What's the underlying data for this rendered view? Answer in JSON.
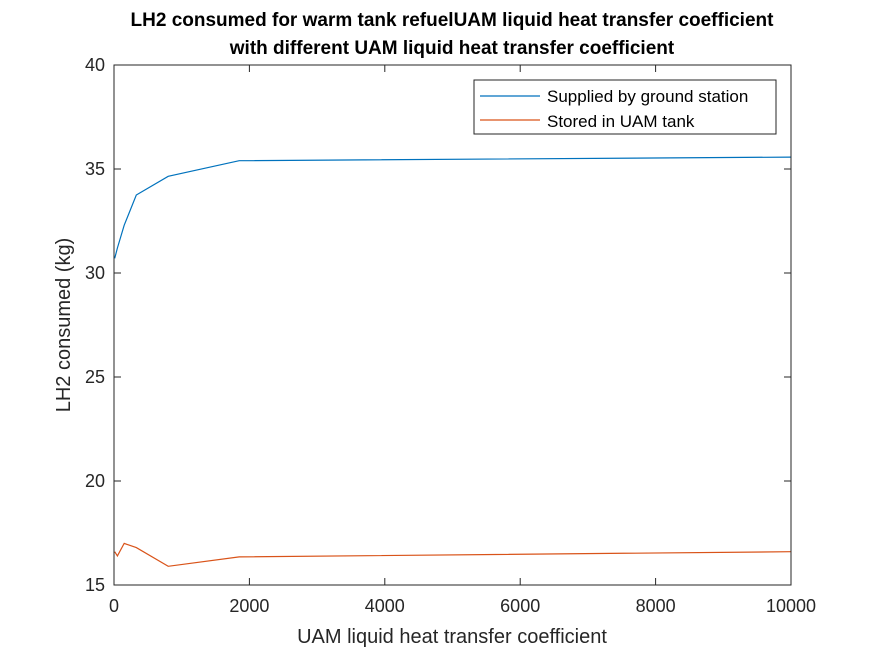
{
  "chart_data": {
    "type": "line",
    "title_line1": "LH2 consumed for warm tank refuelUAM liquid heat transfer coefficient",
    "title_line2": "with different UAM liquid heat transfer coefficient",
    "xlabel": "UAM liquid heat transfer coefficient",
    "ylabel": "LH2 consumed (kg)",
    "xlim": [
      0,
      10000
    ],
    "ylim": [
      15,
      40
    ],
    "xticks": [
      0,
      2000,
      4000,
      6000,
      8000,
      10000
    ],
    "xtick_labels": [
      "0",
      "2000",
      "4000",
      "6000",
      "8000",
      "10000"
    ],
    "yticks": [
      15,
      20,
      25,
      30,
      35,
      40
    ],
    "ytick_labels": [
      "15",
      "20",
      "25",
      "30",
      "35",
      "40"
    ],
    "grid": false,
    "legend_position": "top-right",
    "series": [
      {
        "name": "Supplied by ground station",
        "color": "#0072BD",
        "x": [
          10,
          50,
          150,
          330,
          800,
          1850,
          10000
        ],
        "y": [
          30.7,
          31.2,
          32.3,
          33.75,
          34.65,
          35.4,
          35.57
        ]
      },
      {
        "name": "Stored in UAM tank",
        "color": "#D95319",
        "x": [
          10,
          50,
          150,
          330,
          800,
          1850,
          10000
        ],
        "y": [
          16.6,
          16.4,
          17.0,
          16.8,
          15.9,
          16.35,
          16.6
        ]
      }
    ]
  }
}
